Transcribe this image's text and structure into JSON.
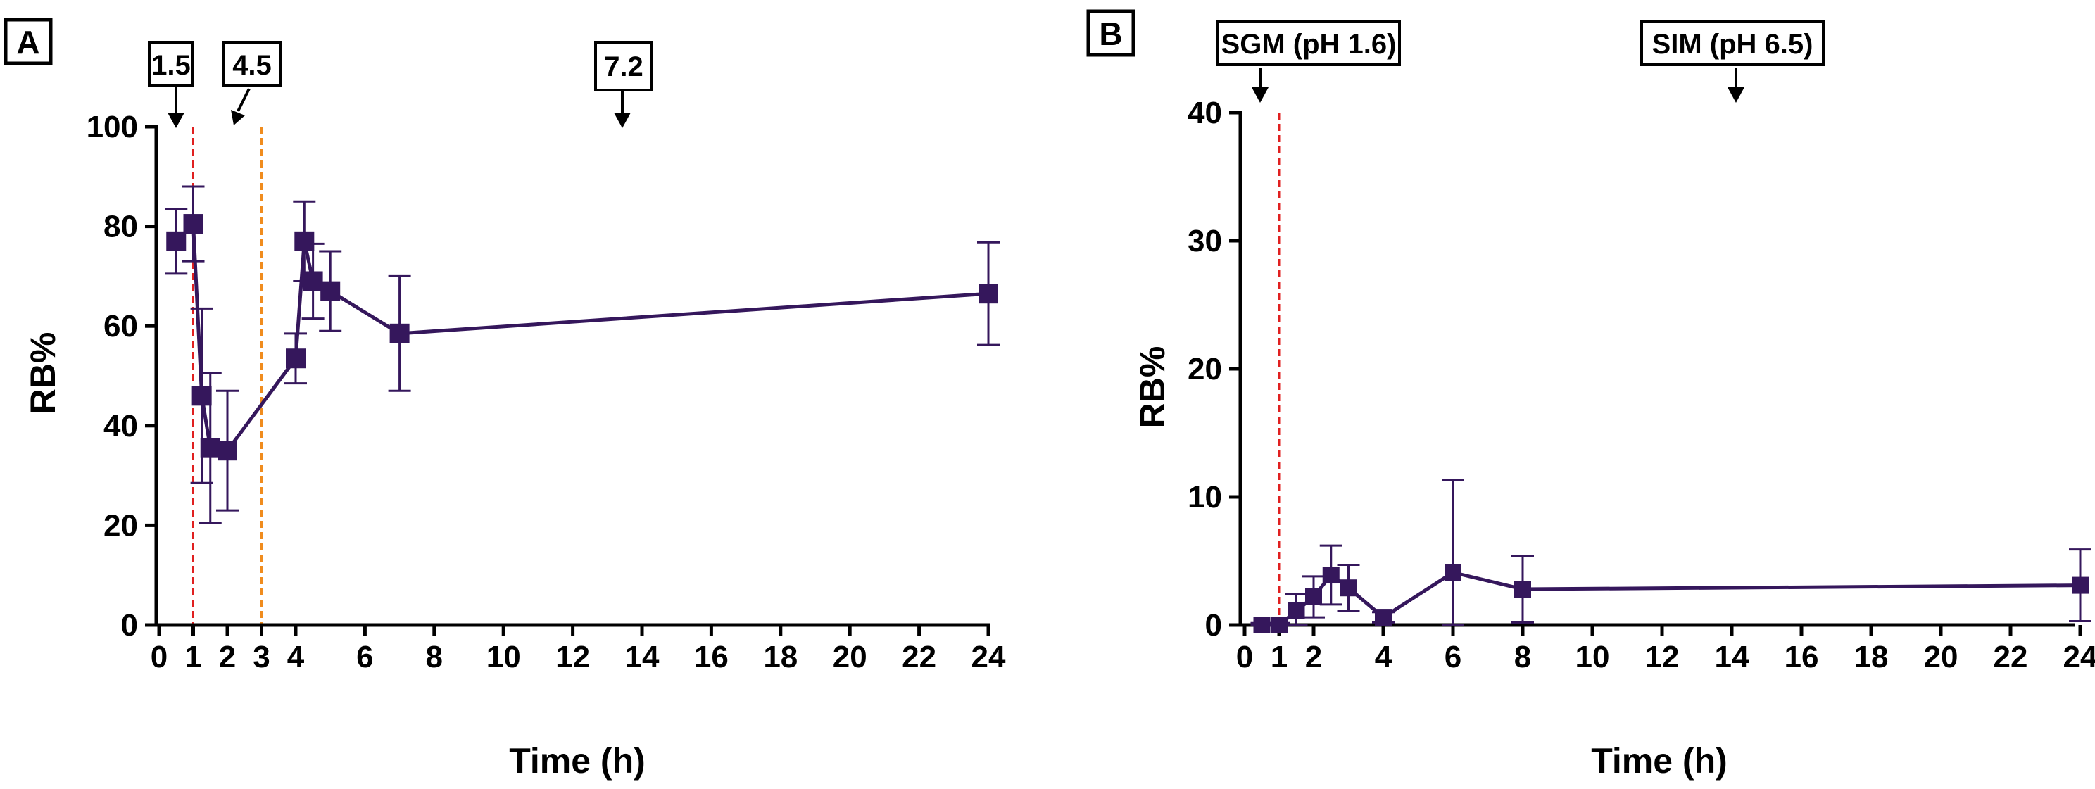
{
  "colors": {
    "series": "#35175c",
    "vline_red": "#e02020",
    "vline_orange": "#f08c1e",
    "axis": "#000000"
  },
  "chart_data": [
    {
      "panel": "A",
      "type": "line",
      "xlabel": "Time (h)",
      "ylabel": "RB%",
      "xlim": [
        0,
        24
      ],
      "ylim": [
        0,
        100
      ],
      "x_ticks": [
        0,
        1,
        2,
        3,
        4,
        6,
        8,
        10,
        12,
        14,
        16,
        18,
        20,
        22,
        24
      ],
      "x_tick_labels": [
        "0",
        "1",
        "2",
        "3",
        "4",
        "6",
        "8",
        "10",
        "12",
        "14",
        "16",
        "18",
        "20",
        "22",
        "24"
      ],
      "y_ticks": [
        0,
        20,
        40,
        60,
        80,
        100
      ],
      "y_tick_labels": [
        "0",
        "20",
        "40",
        "60",
        "80",
        "100"
      ],
      "marker": "square",
      "series": [
        {
          "name": "RB%",
          "x": [
            0.5,
            1,
            1.25,
            1.5,
            2,
            4,
            4.25,
            4.5,
            5,
            7,
            24
          ],
          "values": [
            77,
            80.5,
            46,
            35.5,
            35,
            53.5,
            77,
            69,
            67,
            58.5,
            66.5
          ],
          "error": [
            6.5,
            7.5,
            17.5,
            15,
            12,
            5,
            8,
            7.5,
            8,
            11.5,
            10.3
          ]
        }
      ],
      "reference_lines": [
        {
          "x": 1,
          "color_key": "vline_red",
          "style": "dashed"
        },
        {
          "x": 3,
          "color_key": "vline_orange",
          "style": "dashed"
        }
      ],
      "annotations": [
        {
          "label": "1.5",
          "points_to_x": 0.5
        },
        {
          "label": "4.5",
          "points_to_x": 2.3
        },
        {
          "label": "7.2",
          "points_to_x": 13.5
        }
      ]
    },
    {
      "panel": "B",
      "type": "line",
      "xlabel": "Time (h)",
      "ylabel": "RB%",
      "xlim": [
        0,
        24
      ],
      "ylim": [
        0,
        40
      ],
      "x_ticks": [
        0,
        1,
        2,
        4,
        6,
        8,
        10,
        12,
        14,
        16,
        18,
        20,
        22,
        24
      ],
      "x_tick_labels": [
        "0",
        "1",
        "2",
        "4",
        "6",
        "8",
        "10",
        "12",
        "14",
        "16",
        "18",
        "20",
        "22",
        "24"
      ],
      "y_ticks": [
        0,
        10,
        20,
        30,
        40
      ],
      "y_tick_labels": [
        "0",
        "10",
        "20",
        "30",
        "40"
      ],
      "marker": "square",
      "series": [
        {
          "name": "RB%",
          "x": [
            0.5,
            1,
            1.5,
            2,
            2.5,
            3,
            4,
            6,
            8,
            24
          ],
          "values": [
            0,
            0,
            1.1,
            2.2,
            3.9,
            2.9,
            0.6,
            4.1,
            2.8,
            3.1
          ],
          "error": [
            0.15,
            0.15,
            1.3,
            1.6,
            2.3,
            1.8,
            0.4,
            7.2,
            2.6,
            2.8
          ]
        }
      ],
      "reference_lines": [
        {
          "x": 1,
          "color_key": "vline_red",
          "style": "dashed"
        }
      ],
      "annotations": [
        {
          "label": "SGM (pH 1.6)",
          "points_to_x": 0.5
        },
        {
          "label": "SIM (pH 6.5)",
          "points_to_x": 14.5
        }
      ]
    }
  ]
}
